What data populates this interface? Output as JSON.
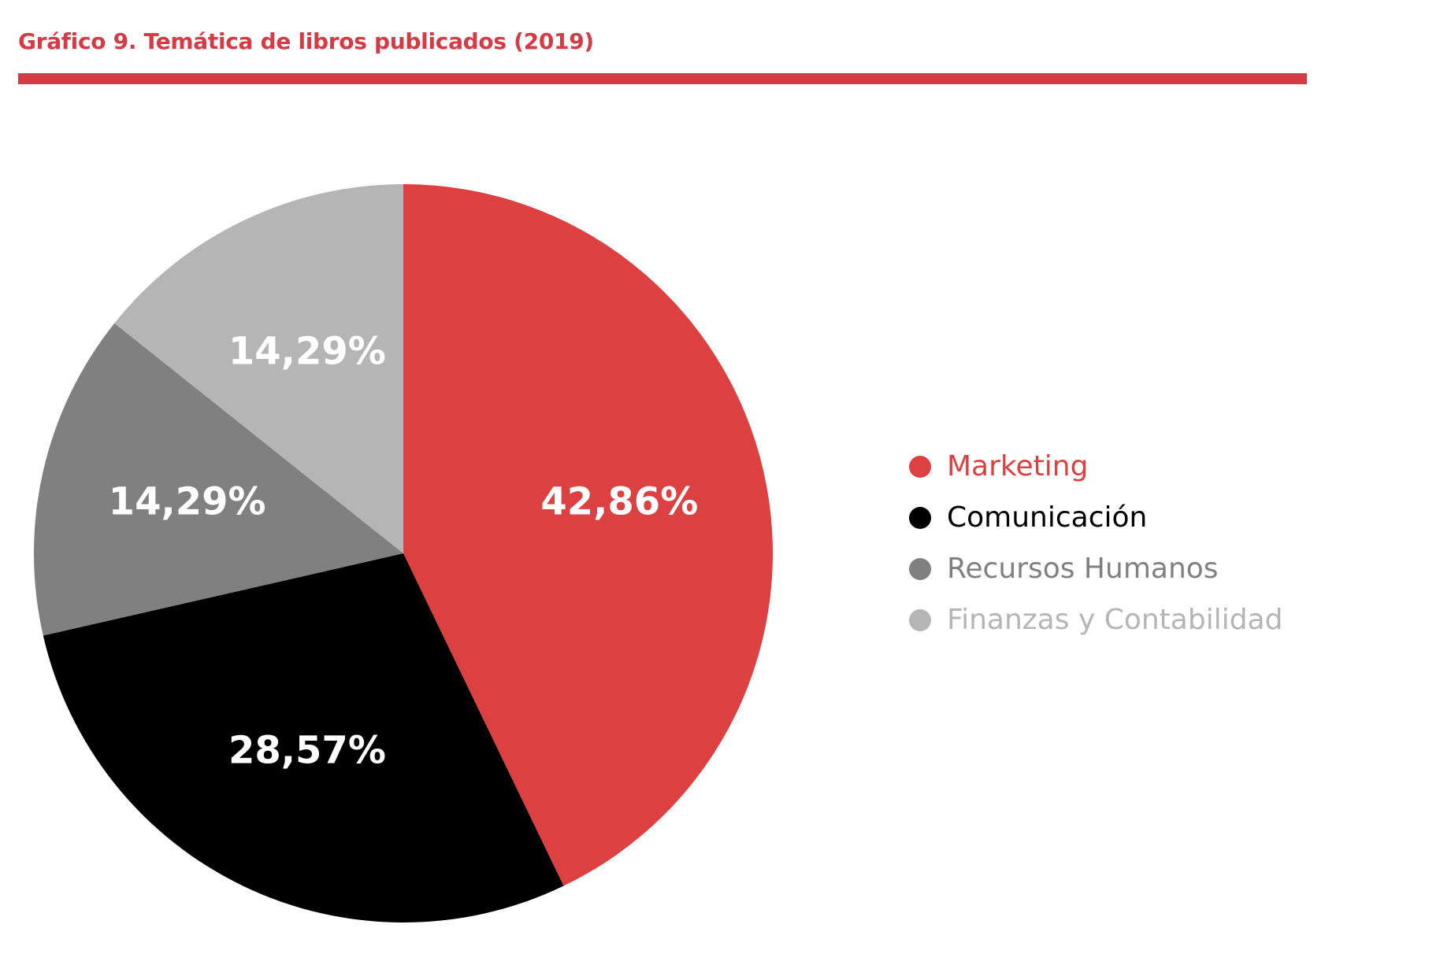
{
  "chart_data": {
    "type": "pie",
    "title": "Gráfico 9. Temática de libros publicados (2019)",
    "categories": [
      "Marketing",
      "Comunicación",
      "Recursos Humanos",
      "Finanzas y Contabilidad"
    ],
    "values": [
      42.86,
      28.57,
      14.29,
      14.29
    ],
    "labels": [
      "42,86%",
      "28,57%",
      "14,29%",
      "14,29%"
    ],
    "colors": [
      "#dd4040",
      "#000000",
      "#808080",
      "#b5b5b5"
    ],
    "start": "top",
    "direction": "clockwise",
    "legend_position": "right"
  }
}
